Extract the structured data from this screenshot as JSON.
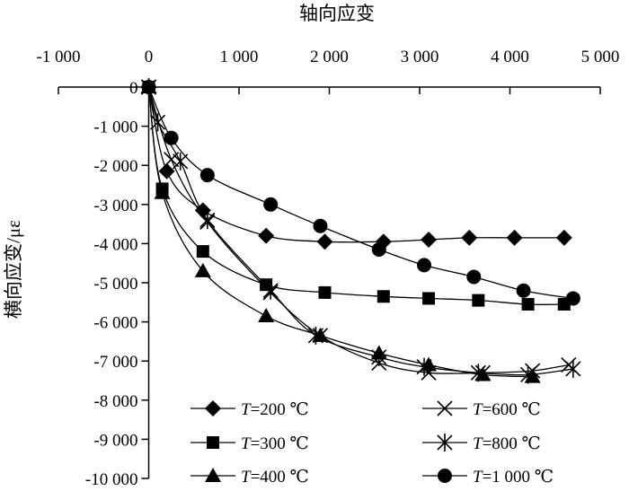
{
  "chart_data": {
    "type": "line",
    "title": "",
    "xlabel": "轴向应变",
    "ylabel": "横向应变/με",
    "xlim": [
      -1000,
      5000
    ],
    "ylim": [
      -10000,
      0
    ],
    "x_ticks": [
      -1000,
      0,
      1000,
      2000,
      3000,
      4000,
      5000
    ],
    "x_tick_labels": [
      "-1 000",
      "0",
      "1 000",
      "2 000",
      "3 000",
      "4 000",
      "5 000"
    ],
    "y_ticks": [
      0,
      -1000,
      -2000,
      -3000,
      -4000,
      -5000,
      -6000,
      -7000,
      -8000,
      -9000,
      -10000
    ],
    "y_tick_labels": [
      "0",
      "-1 000",
      "-2 000",
      "-3 000",
      "-4 000",
      "-5 000",
      "-6 000",
      "-7 000",
      "-8 000",
      "-9 000",
      "-10 000"
    ],
    "x_axis_position": "top",
    "grid": false,
    "legend_position": "bottom",
    "series": [
      {
        "name_var": "T",
        "name_rest": "=200 ℃",
        "marker": "diamond",
        "x": [
          0,
          200,
          600,
          1300,
          1950,
          2600,
          3100,
          3550,
          4050,
          4600
        ],
        "y": [
          0,
          -2150,
          -3150,
          -3800,
          -3950,
          -3950,
          -3900,
          -3850,
          -3850,
          -3850
        ]
      },
      {
        "name_var": "T",
        "name_rest": "=300 ℃",
        "marker": "square",
        "x": [
          0,
          150,
          600,
          1300,
          1950,
          2600,
          3100,
          3650,
          4200,
          4600
        ],
        "y": [
          0,
          -2600,
          -4200,
          -5050,
          -5250,
          -5350,
          -5400,
          -5450,
          -5550,
          -5550
        ]
      },
      {
        "name_var": "T",
        "name_rest": "=400 ℃",
        "marker": "triangle",
        "x": [
          0,
          150,
          600,
          1300,
          1900,
          2550,
          3100,
          3700,
          4250
        ],
        "y": [
          0,
          -2700,
          -4700,
          -5850,
          -6350,
          -6800,
          -7100,
          -7350,
          -7400
        ]
      },
      {
        "name_var": "T",
        "name_rest": "=600 ℃",
        "marker": "x",
        "x": [
          0,
          250,
          650,
          1350,
          1900,
          2550,
          3100,
          3700,
          4250,
          4650
        ],
        "y": [
          0,
          -1850,
          -3450,
          -5250,
          -6350,
          -7050,
          -7300,
          -7300,
          -7250,
          -7100
        ]
      },
      {
        "name_var": "T",
        "name_rest": "=800 ℃",
        "marker": "star",
        "x": [
          0,
          100,
          350,
          650,
          1350,
          1850,
          2550,
          3050,
          3650,
          4200,
          4700
        ],
        "y": [
          0,
          -900,
          -1900,
          -3400,
          -5200,
          -6350,
          -6900,
          -7150,
          -7300,
          -7350,
          -7200
        ]
      },
      {
        "name_var": "T",
        "name_rest": "=1 000 ℃",
        "marker": "circle",
        "x": [
          0,
          250,
          650,
          1350,
          1900,
          2550,
          3050,
          3600,
          4150,
          4700
        ],
        "y": [
          0,
          -1300,
          -2250,
          -3000,
          -3550,
          -4150,
          -4550,
          -4850,
          -5200,
          -5400
        ]
      }
    ]
  }
}
